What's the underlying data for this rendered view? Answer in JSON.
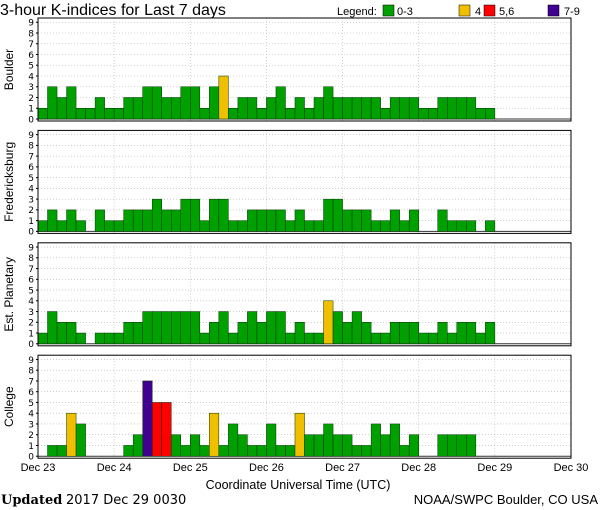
{
  "chart_data": {
    "type": "bar",
    "title": "3-hour K-indices for Last 7 days",
    "legend": {
      "label": "Legend:",
      "placement": "top-right",
      "entries": [
        {
          "label": "0-3",
          "color": "#00a000"
        },
        {
          "label": "4",
          "color": "#f0c000"
        },
        {
          "label": "5,6",
          "color": "#ff0000"
        },
        {
          "label": "7-9",
          "color": "#400090"
        }
      ]
    },
    "x_tick_labels": [
      "Dec 23",
      "Dec 24",
      "Dec 25",
      "Dec 26",
      "Dec 27",
      "Dec 28",
      "Dec 29",
      "Dec 30"
    ],
    "xlabel": "Coordinate Universal Time (UTC)",
    "ylim": [
      0,
      9
    ],
    "y_ticks": [
      0,
      1,
      2,
      3,
      4,
      5,
      6,
      7,
      8,
      9
    ],
    "grid": true,
    "panels": [
      {
        "ylabel": "Boulder",
        "values": [
          1,
          3,
          2,
          3,
          1,
          1,
          2,
          1,
          1,
          2,
          2,
          3,
          3,
          2,
          2,
          3,
          3,
          1,
          3,
          4,
          1,
          2,
          2,
          1,
          2,
          3,
          1,
          2,
          1,
          2,
          3,
          2,
          2,
          2,
          2,
          2,
          1,
          2,
          2,
          2,
          1,
          1,
          2,
          2,
          2,
          2,
          1,
          1
        ]
      },
      {
        "ylabel": "Fredericksburg",
        "values": [
          1,
          2,
          1,
          2,
          1,
          0,
          2,
          1,
          1,
          2,
          2,
          2,
          3,
          2,
          2,
          3,
          3,
          1,
          3,
          3,
          1,
          1,
          2,
          2,
          2,
          2,
          1,
          2,
          1,
          1,
          3,
          3,
          2,
          2,
          2,
          1,
          1,
          2,
          1,
          2,
          0,
          0,
          2,
          1,
          1,
          1,
          0,
          1
        ]
      },
      {
        "ylabel": "Est. Planetary",
        "values": [
          1,
          3,
          2,
          2,
          1,
          0,
          1,
          1,
          1,
          2,
          2,
          3,
          3,
          3,
          3,
          3,
          3,
          1,
          2,
          3,
          1,
          2,
          3,
          2,
          3,
          3,
          1,
          2,
          1,
          1,
          4,
          3,
          2,
          3,
          2,
          1,
          1,
          2,
          2,
          2,
          1,
          1,
          2,
          1,
          2,
          2,
          1,
          2
        ]
      },
      {
        "ylabel": "College",
        "values": [
          0,
          1,
          1,
          4,
          3,
          0,
          0,
          0,
          0,
          1,
          2,
          7,
          5,
          5,
          2,
          1,
          2,
          1,
          4,
          1,
          3,
          2,
          1,
          1,
          3,
          1,
          1,
          4,
          2,
          2,
          3,
          2,
          2,
          1,
          1,
          3,
          2,
          3,
          1,
          2,
          0,
          0,
          2,
          2,
          2,
          2,
          0,
          0
        ]
      }
    ]
  },
  "footer": {
    "updated_label": "Updated",
    "updated_value": "2017 Dec 29 0030",
    "credit": "NOAA/SWPC Boulder, CO USA"
  }
}
